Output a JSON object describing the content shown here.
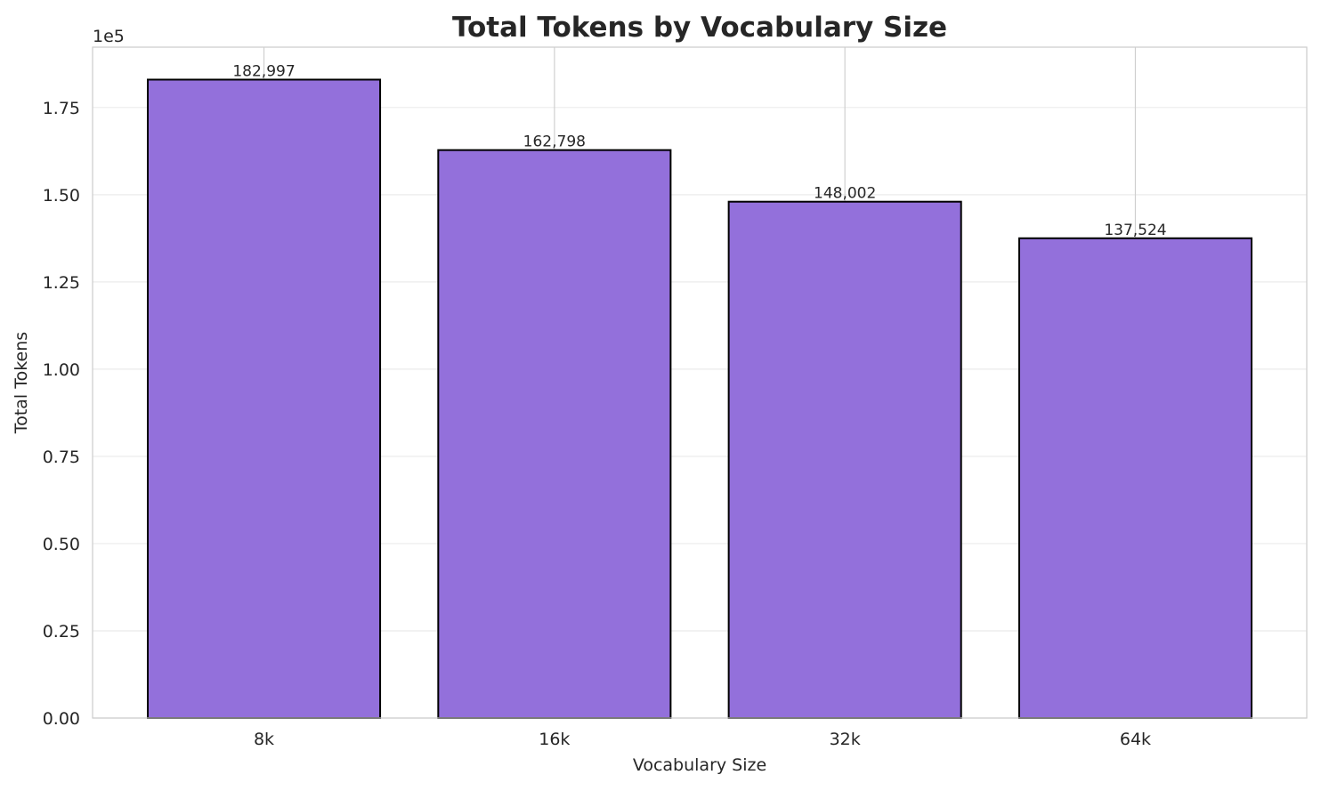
{
  "chart_data": {
    "type": "bar",
    "title": "Total Tokens by Vocabulary Size",
    "xlabel": "Vocabulary Size",
    "ylabel": "Total Tokens",
    "offset_label": "1e5",
    "categories": [
      "8k",
      "16k",
      "32k",
      "64k"
    ],
    "values": [
      182997,
      162798,
      148002,
      137524
    ],
    "data_labels": [
      "182,997",
      "162,798",
      "148,002",
      "137,524"
    ],
    "ylim": [
      0,
      192300
    ],
    "yticks": [
      0,
      25000,
      50000,
      75000,
      100000,
      125000,
      150000,
      175000
    ],
    "ytick_labels": [
      "0.00",
      "0.25",
      "0.50",
      "0.75",
      "1.00",
      "1.25",
      "1.50",
      "1.75"
    ],
    "grid": true,
    "bar_color": "#9370DB",
    "edge_color": "#000000"
  }
}
